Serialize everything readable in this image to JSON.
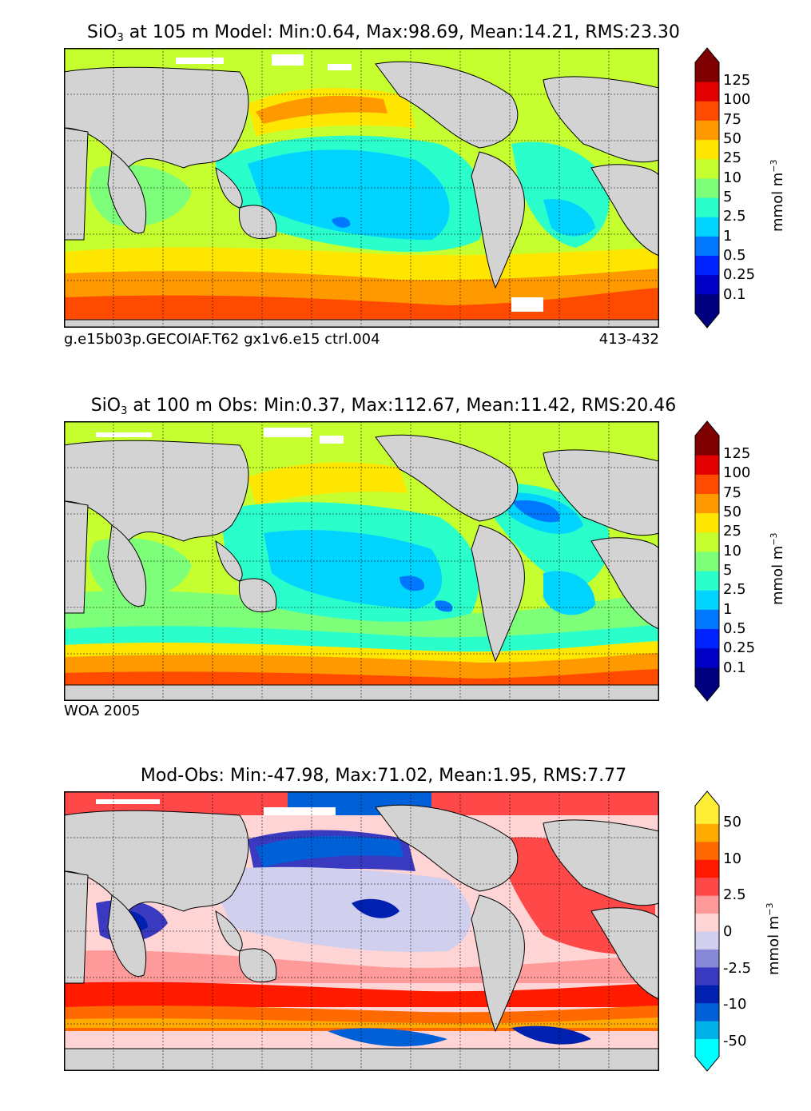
{
  "panels": [
    {
      "title_main": "SiO",
      "title_sub": "3",
      "title_rest": " at 105 m Model: Min:0.64, Max:98.69, Mean:14.21, RMS:23.30",
      "caption_left": "g.e15b03p.GECOIAF.T62 gx1v6.e15 ctrl.004",
      "caption_right": "413-432",
      "colorbar": {
        "unit": "mmol m",
        "unit_exp": "−3",
        "ticks": [
          "125",
          "100",
          "75",
          "50",
          "25",
          "10",
          "5",
          "2.5",
          "1",
          "0.5",
          "0.25",
          "0.1"
        ],
        "colors": [
          "#00007f",
          "#0000c6",
          "#0022ff",
          "#0077ff",
          "#00d4ff",
          "#2affcc",
          "#7dff7a",
          "#c6ff2f",
          "#ffe600",
          "#ff9900",
          "#ff4b00",
          "#e30000",
          "#7f0000"
        ]
      }
    },
    {
      "title_main": "SiO",
      "title_sub": "3",
      "title_rest": " at 100 m Obs: Min:0.37, Max:112.67, Mean:11.42, RMS:20.46",
      "caption_left": "WOA 2005",
      "caption_right": "",
      "colorbar": {
        "unit": "mmol m",
        "unit_exp": "−3",
        "ticks": [
          "125",
          "100",
          "75",
          "50",
          "25",
          "10",
          "5",
          "2.5",
          "1",
          "0.5",
          "0.25",
          "0.1"
        ],
        "colors": [
          "#00007f",
          "#0000c6",
          "#0022ff",
          "#0077ff",
          "#00d4ff",
          "#2affcc",
          "#7dff7a",
          "#c6ff2f",
          "#ffe600",
          "#ff9900",
          "#ff4b00",
          "#e30000",
          "#7f0000"
        ]
      }
    },
    {
      "title_main": "Mod-Obs: Min:-47.98, Max:71.02, Mean:1.95, RMS:7.77",
      "title_sub": "",
      "title_rest": "",
      "caption_left": "",
      "caption_right": "",
      "colorbar": {
        "unit": "mmol m",
        "unit_exp": "−3",
        "ticks": [
          "50",
          "",
          "10",
          "",
          "2.5",
          "",
          "0",
          "",
          "-2.5",
          "",
          "-10",
          "",
          "-50"
        ],
        "colors": [
          "#00ffff",
          "#00b0e8",
          "#0060d8",
          "#0020b0",
          "#3a3ac0",
          "#8888d8",
          "#d0d0ee",
          "#ffd4d4",
          "#ff9a9a",
          "#ff4848",
          "#ff1a00",
          "#ff6a00",
          "#ffaa00",
          "#ffee33"
        ]
      }
    }
  ],
  "chart_data": [
    {
      "type": "heatmap",
      "variable": "SiO3",
      "depth": "105 m",
      "source": "Model",
      "stats": {
        "min": 0.64,
        "max": 98.69,
        "mean": 14.21,
        "rms": 23.3
      },
      "colorbar_levels": [
        0.1,
        0.25,
        0.5,
        1,
        2.5,
        5,
        10,
        25,
        50,
        75,
        100,
        125
      ],
      "unit": "mmol m-3"
    },
    {
      "type": "heatmap",
      "variable": "SiO3",
      "depth": "100 m",
      "source": "Obs",
      "stats": {
        "min": 0.37,
        "max": 112.67,
        "mean": 11.42,
        "rms": 20.46
      },
      "colorbar_levels": [
        0.1,
        0.25,
        0.5,
        1,
        2.5,
        5,
        10,
        25,
        50,
        75,
        100,
        125
      ],
      "unit": "mmol m-3"
    },
    {
      "type": "heatmap",
      "variable": "Mod-Obs",
      "stats": {
        "min": -47.98,
        "max": 71.02,
        "mean": 1.95,
        "rms": 7.77
      },
      "colorbar_levels": [
        -50,
        -10,
        -2.5,
        0,
        2.5,
        10,
        50
      ],
      "unit": "mmol m-3"
    }
  ]
}
